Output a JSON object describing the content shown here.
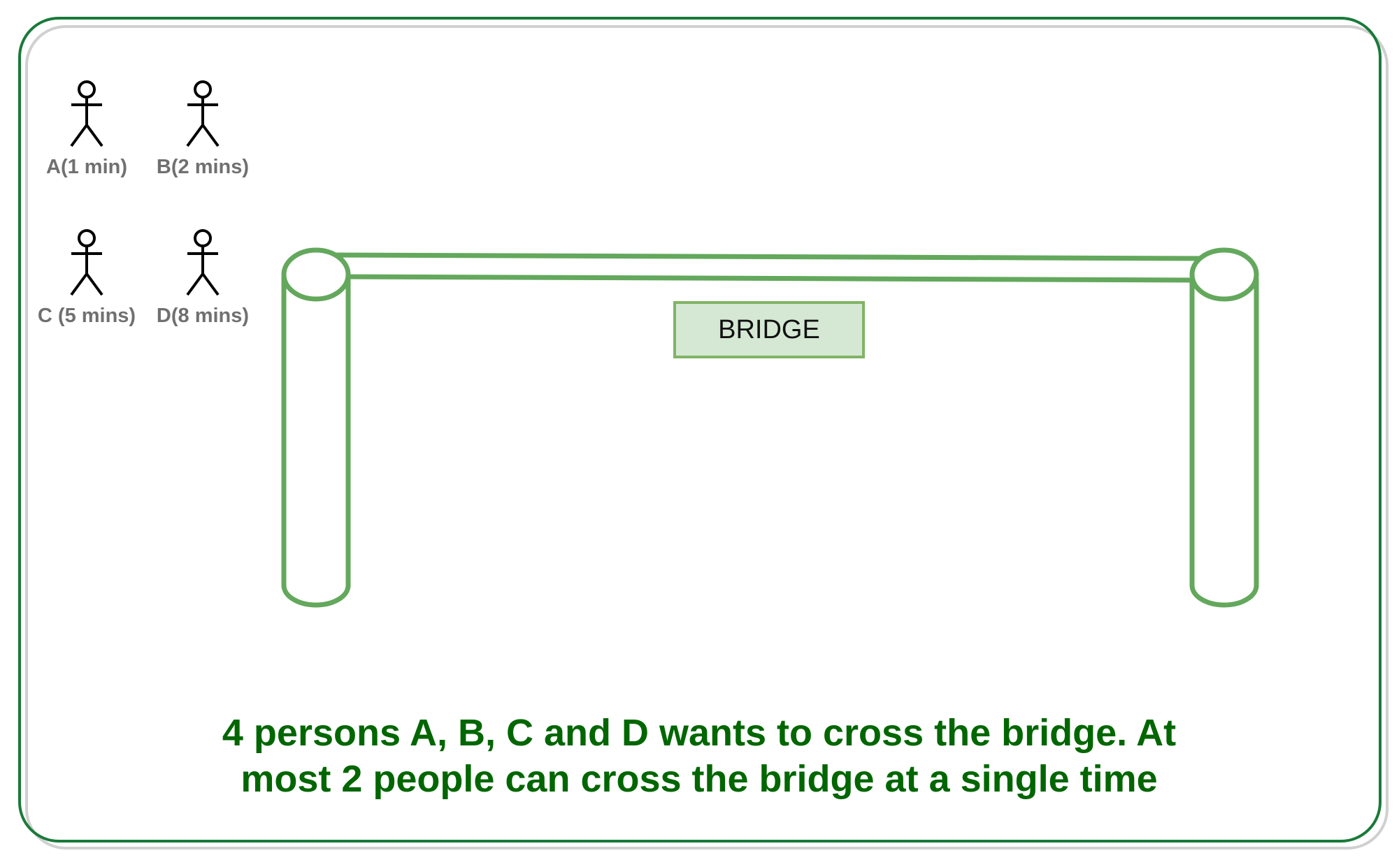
{
  "people": [
    {
      "label": "A(1 min)",
      "icon": "stick-figure-icon"
    },
    {
      "label": "B(2 mins)",
      "icon": "stick-figure-icon"
    },
    {
      "label": "C (5 mins)",
      "icon": "stick-figure-icon"
    },
    {
      "label": "D(8 mins)",
      "icon": "stick-figure-icon"
    }
  ],
  "bridge": {
    "label": "BRIDGE"
  },
  "caption": {
    "line1": "4 persons A, B, C and D wants to cross the bridge. At",
    "line2": "most 2 people can cross the bridge at a single time"
  },
  "colors": {
    "frame": "#1a7a3a",
    "bridge_stroke": "#63a85c",
    "label_fill": "#d5e8d4",
    "label_stroke": "#82b366",
    "caption": "#006600",
    "person_label": "#707070"
  }
}
